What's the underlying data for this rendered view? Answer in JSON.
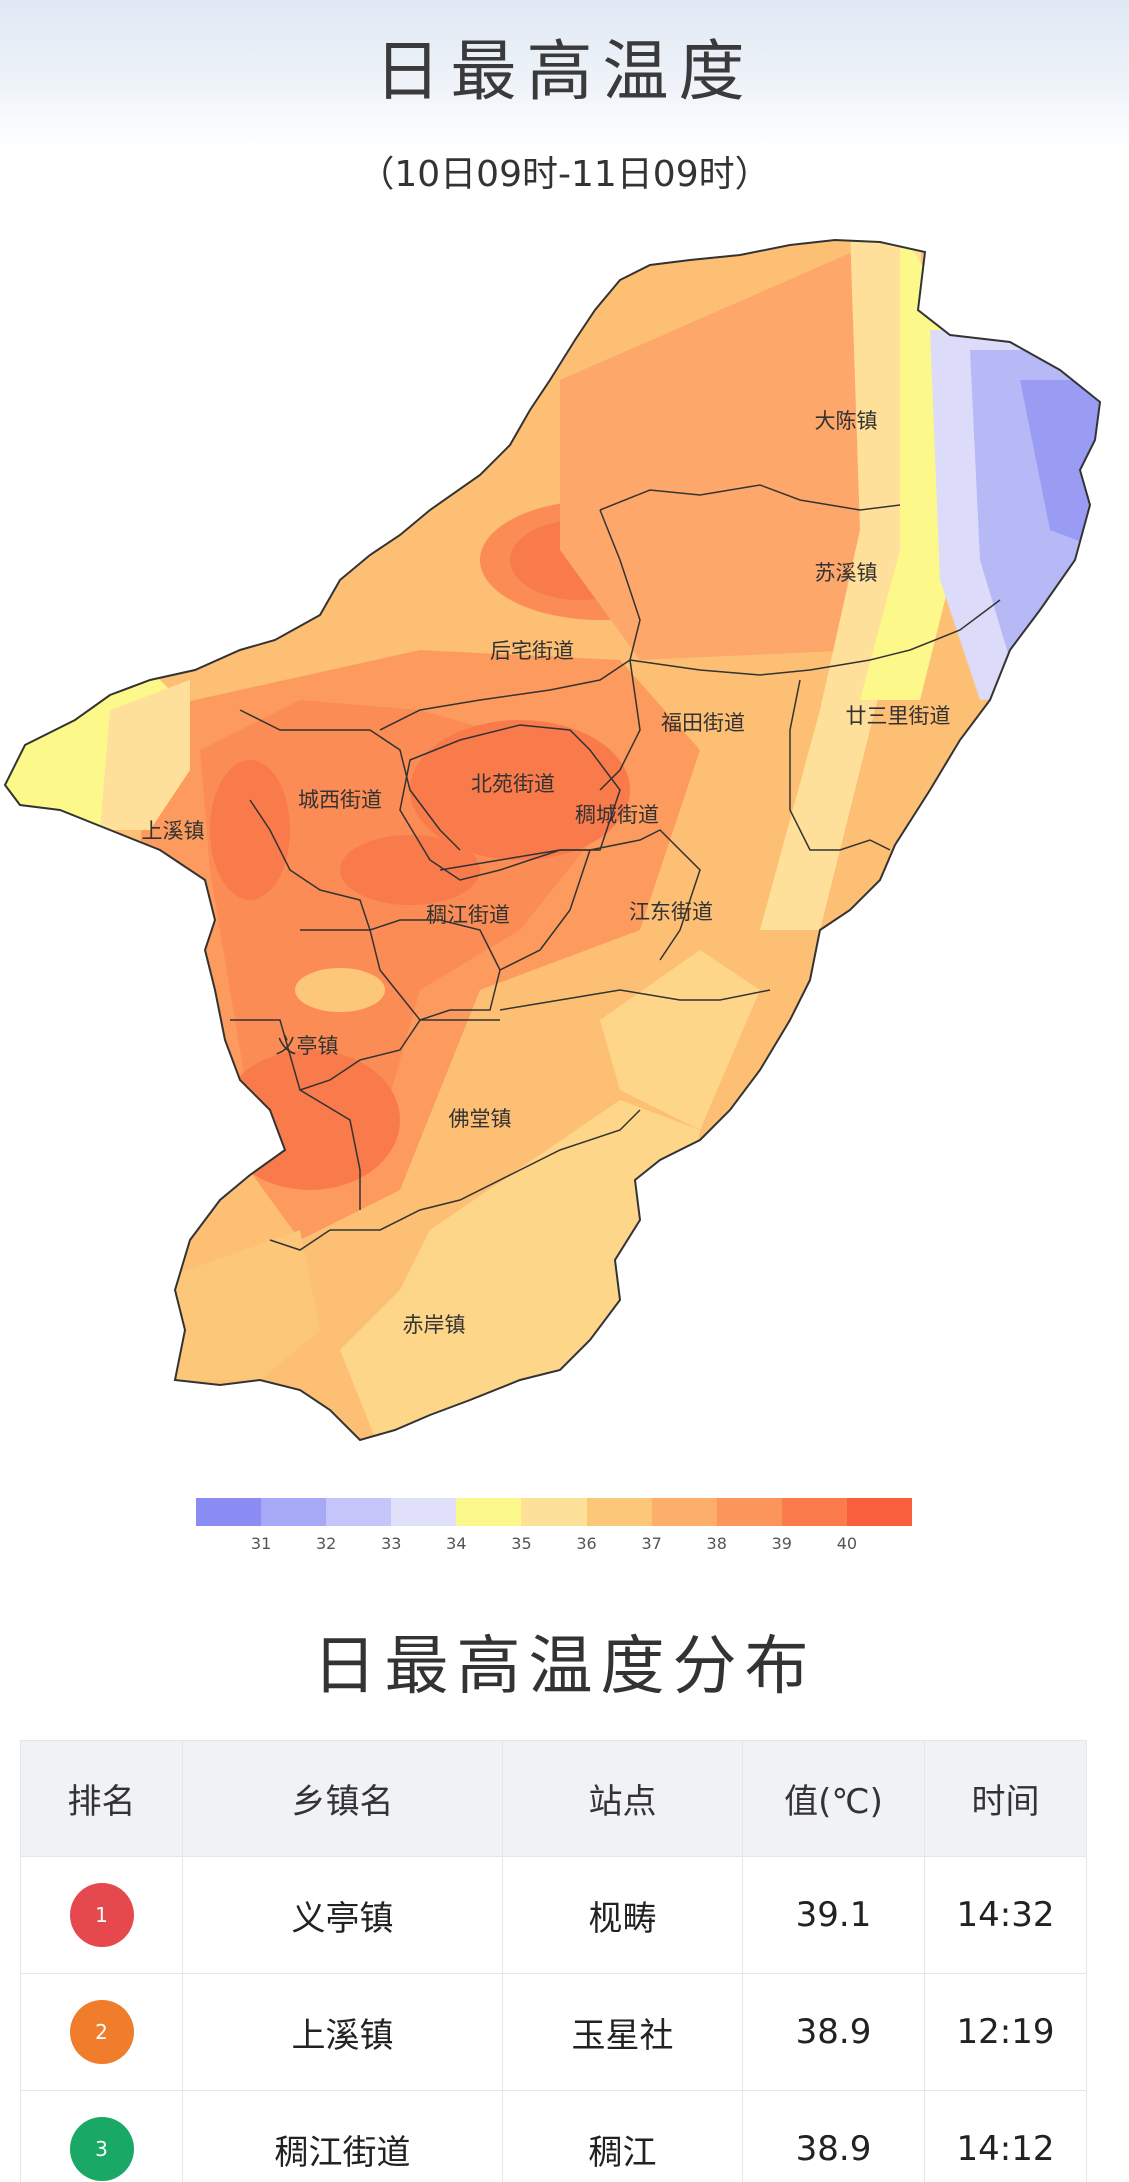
{
  "header": {
    "title": "日最高温度",
    "subtitle": "（10日09时-11日09时）"
  },
  "map": {
    "regions": [
      {
        "name": "大陈镇",
        "color": "#fdb56a"
      },
      {
        "name": "苏溪镇",
        "color": "#fda86a"
      },
      {
        "name": "后宅街道",
        "color": "#fc9b5f"
      },
      {
        "name": "福田街道",
        "color": "#fca862"
      },
      {
        "name": "廿三里街道",
        "color": "#fec278"
      },
      {
        "name": "城西街道",
        "color": "#fb8f5a"
      },
      {
        "name": "上溪镇",
        "color": "#fba060"
      },
      {
        "name": "北苑街道",
        "color": "#fa8552"
      },
      {
        "name": "稠城街道",
        "color": "#fb9a5c"
      },
      {
        "name": "稠江街道",
        "color": "#fb9558"
      },
      {
        "name": "江东街道",
        "color": "#fdbd72"
      },
      {
        "name": "义亭镇",
        "color": "#fb955a"
      },
      {
        "name": "佛堂镇",
        "color": "#fca664"
      },
      {
        "name": "赤岸镇",
        "color": "#fec67c"
      }
    ],
    "palette": {
      "east_cool": "#b7b8f6",
      "east_cooler": "#9a9cf4",
      "east_light": "#dcdcfa",
      "yellow_band": "#fdf88a",
      "pale_band": "#fee09a",
      "hot_core": "#f97a4a",
      "boundary": "#333333"
    }
  },
  "legend": {
    "colors": [
      "#8c8cf5",
      "#a7a8f6",
      "#c4c5f8",
      "#e0e0fb",
      "#fcf98c",
      "#fde198",
      "#fdc77a",
      "#fdae6b",
      "#fc955b",
      "#fb7b4d",
      "#fa5f3c"
    ],
    "ticks": [
      "31",
      "32",
      "33",
      "34",
      "35",
      "36",
      "37",
      "38",
      "39",
      "40"
    ]
  },
  "section": {
    "title": "日最高温度分布"
  },
  "table": {
    "headers": [
      "排名",
      "乡镇名",
      "站点",
      "值(℃)",
      "时间"
    ],
    "rows": [
      {
        "rank": "1",
        "rank_color": "#e5484d",
        "town": "义亭镇",
        "station": "枧畴",
        "value": "39.1",
        "time": "14:32"
      },
      {
        "rank": "2",
        "rank_color": "#ef7d2b",
        "town": "上溪镇",
        "station": "玉星社",
        "value": "38.9",
        "time": "12:19"
      },
      {
        "rank": "3",
        "rank_color": "#1aa866",
        "town": "稠江街道",
        "station": "稠江",
        "value": "38.9",
        "time": "14:12"
      }
    ]
  }
}
